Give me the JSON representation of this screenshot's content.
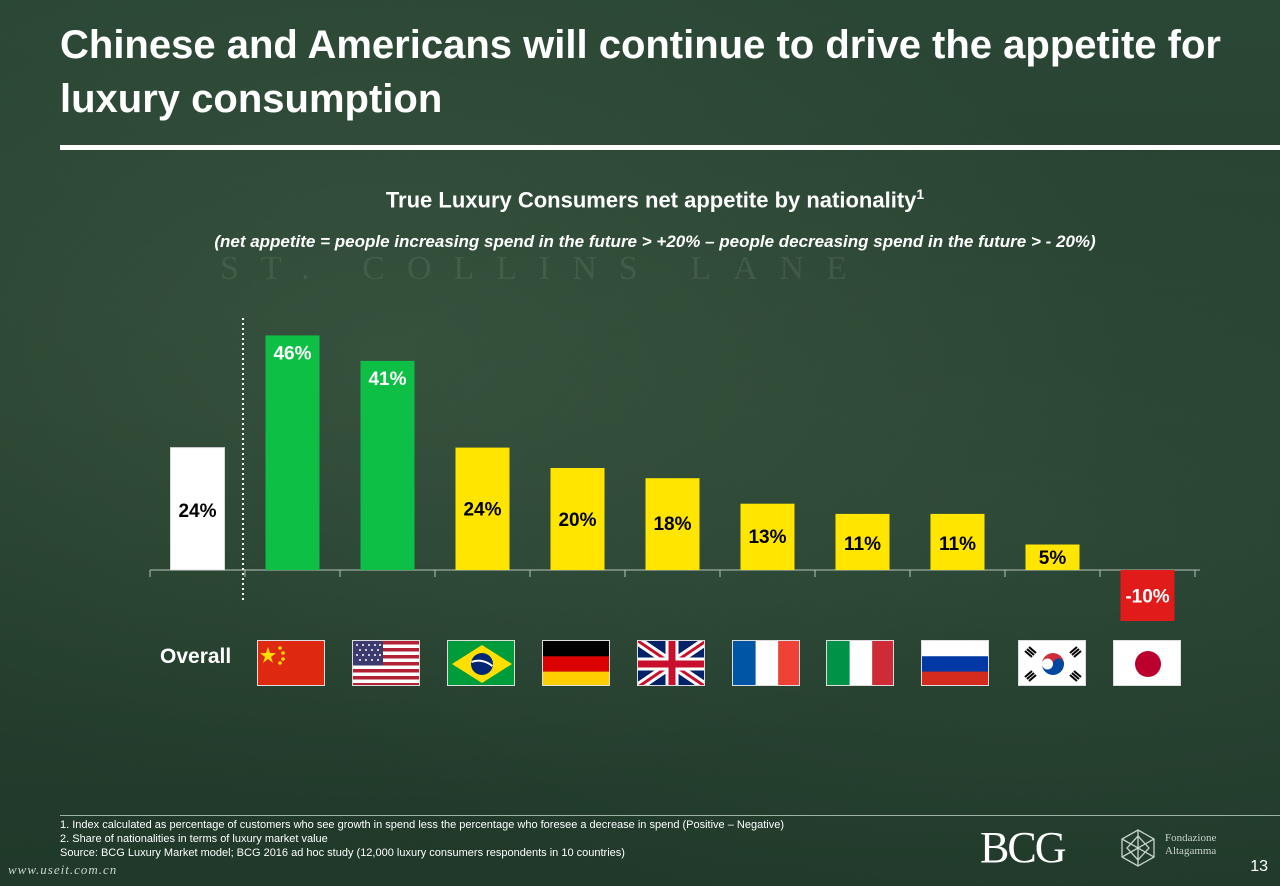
{
  "slide": {
    "title": "Chinese and Americans will continue to drive the appetite for luxury consumption",
    "background_text": "ST. COLLINS LANE",
    "page_number": "13",
    "watermark": "www.useit.com.cn"
  },
  "chart_data": {
    "type": "bar",
    "title": "True Luxury Consumers net appetite by nationality",
    "title_superscript": "1",
    "subtitle": "(net appetite = people increasing spend in the future > +20% – people decreasing spend in the future > - 20%)",
    "categories": [
      "Overall",
      "China",
      "USA",
      "Brazil",
      "Germany",
      "UK",
      "France",
      "Italy",
      "Russia",
      "South Korea",
      "Japan"
    ],
    "values": [
      24,
      46,
      41,
      24,
      20,
      18,
      13,
      11,
      11,
      5,
      -10
    ],
    "value_labels": [
      "24%",
      "46%",
      "41%",
      "24%",
      "20%",
      "18%",
      "13%",
      "11%",
      "11%",
      "5%",
      "-10%"
    ],
    "bar_colors": [
      "#ffffff",
      "#0ebf45",
      "#0ebf45",
      "#ffe500",
      "#ffe500",
      "#ffe500",
      "#ffe500",
      "#ffe500",
      "#ffe500",
      "#ffe500",
      "#e11a1a"
    ],
    "category_label": "Overall",
    "ylim": [
      -10,
      46
    ],
    "grid": false
  },
  "flags": [
    {
      "name": "china-flag-icon"
    },
    {
      "name": "usa-flag-icon"
    },
    {
      "name": "brazil-flag-icon"
    },
    {
      "name": "germany-flag-icon"
    },
    {
      "name": "uk-flag-icon"
    },
    {
      "name": "france-flag-icon"
    },
    {
      "name": "italy-flag-icon"
    },
    {
      "name": "russia-flag-icon"
    },
    {
      "name": "south-korea-flag-icon"
    },
    {
      "name": "japan-flag-icon"
    }
  ],
  "footnotes": {
    "note1": "1. Index calculated as percentage of customers who see growth in spend less the percentage who foresee a decrease in spend (Positive – Negative)",
    "note2": "2. Share of nationalities in terms of luxury market value",
    "source": "Source: BCG Luxury Market model; BCG 2016 ad hoc study (12,000 luxury consumers respondents in 10 countries)"
  },
  "logos": {
    "bcg": "BCG",
    "fondazione_line1": "Fondazione",
    "fondazione_line2": "Altagamma"
  }
}
